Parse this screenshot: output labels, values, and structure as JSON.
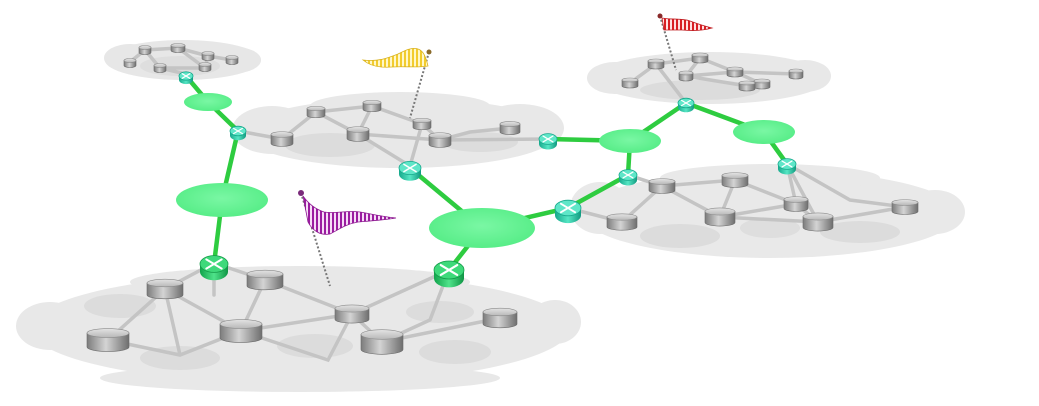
{
  "colors": {
    "cloud": "#e6e6e6",
    "cloud_inner": "#dadada",
    "backbone_link": "#2ecc40",
    "backbone_node": "#5ff08e",
    "router": "#3bd9b0",
    "router_active": "#22c76a",
    "local_link": "#c3c3c3",
    "server_top": "#c8c8c8",
    "server_side": "#8f8f8f"
  },
  "clouds": [
    {
      "name": "cloud-top-left",
      "size": "small"
    },
    {
      "name": "cloud-center",
      "size": "medium"
    },
    {
      "name": "cloud-top-right",
      "size": "medium"
    },
    {
      "name": "cloud-right",
      "size": "large"
    },
    {
      "name": "cloud-bottom-left",
      "size": "large"
    }
  ],
  "flags": [
    {
      "name": "flag-yellow",
      "color": "#f5d23a",
      "pattern": "striped"
    },
    {
      "name": "flag-red",
      "color": "#e0262a",
      "pattern": "striped"
    },
    {
      "name": "flag-purple",
      "color": "#a51ea8",
      "pattern": "striped"
    }
  ],
  "icons": {
    "router": "router-icon",
    "server": "server-disk-icon",
    "hub": "backbone-hub-icon",
    "flag": "flag-icon"
  }
}
